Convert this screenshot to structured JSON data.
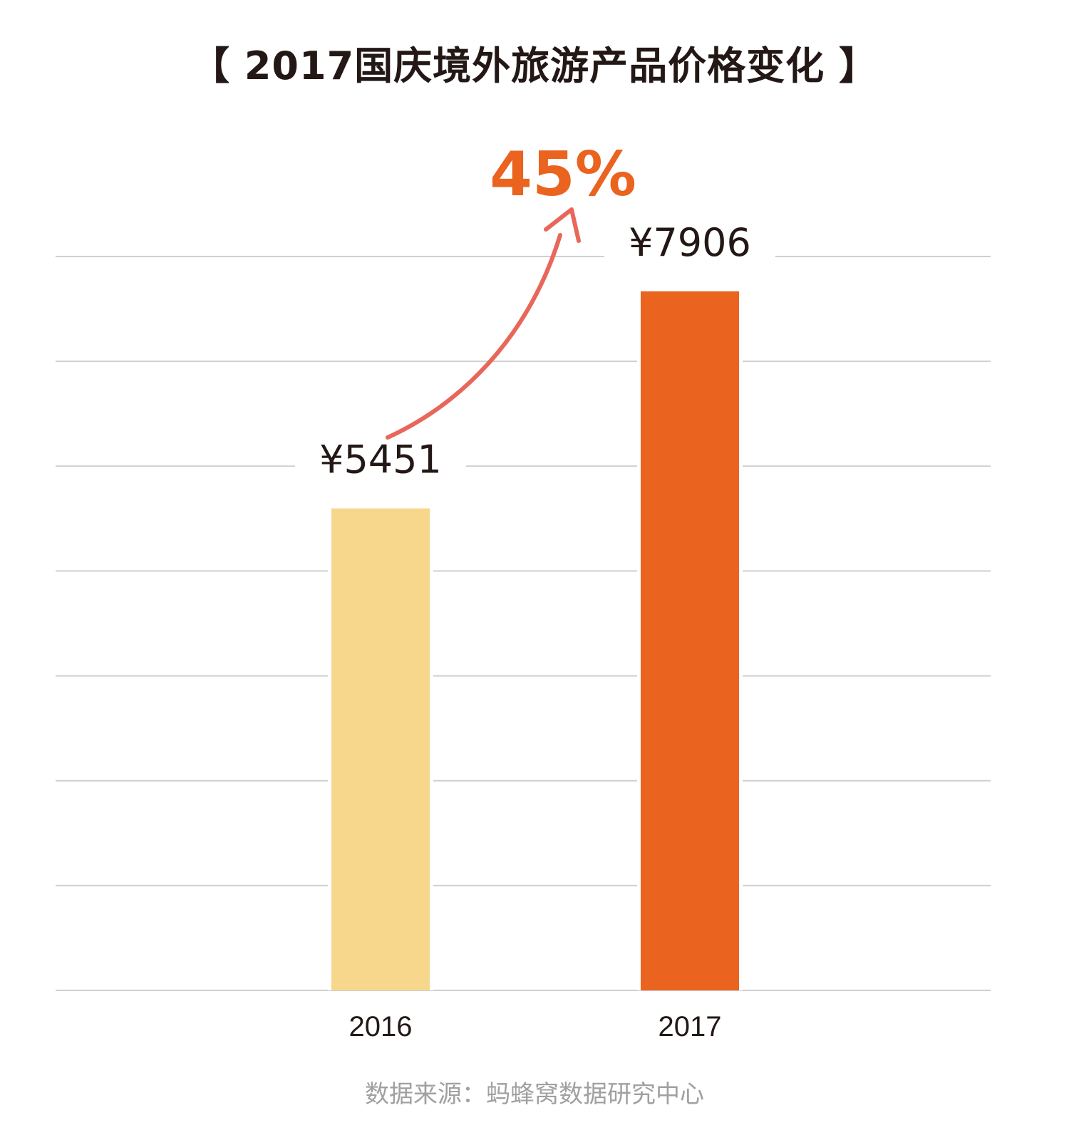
{
  "title": "【 2017国庆境外旅游产品价格变化 】",
  "source": "数据来源：蚂蜂窝数据研究中心",
  "chart_data": {
    "type": "bar",
    "title": "【 2017国庆境外旅游产品价格变化 】",
    "categories": [
      "2016",
      "2017"
    ],
    "values": [
      5451,
      7906
    ],
    "value_labels": [
      "¥5451",
      "¥7906"
    ],
    "ylim": [
      0,
      8300
    ],
    "grid": true,
    "colors": [
      "#F7D78C",
      "#EA631F"
    ],
    "annotation": {
      "text": "45%",
      "color": "#EA631F",
      "arrow_color": "#E8675A"
    }
  }
}
